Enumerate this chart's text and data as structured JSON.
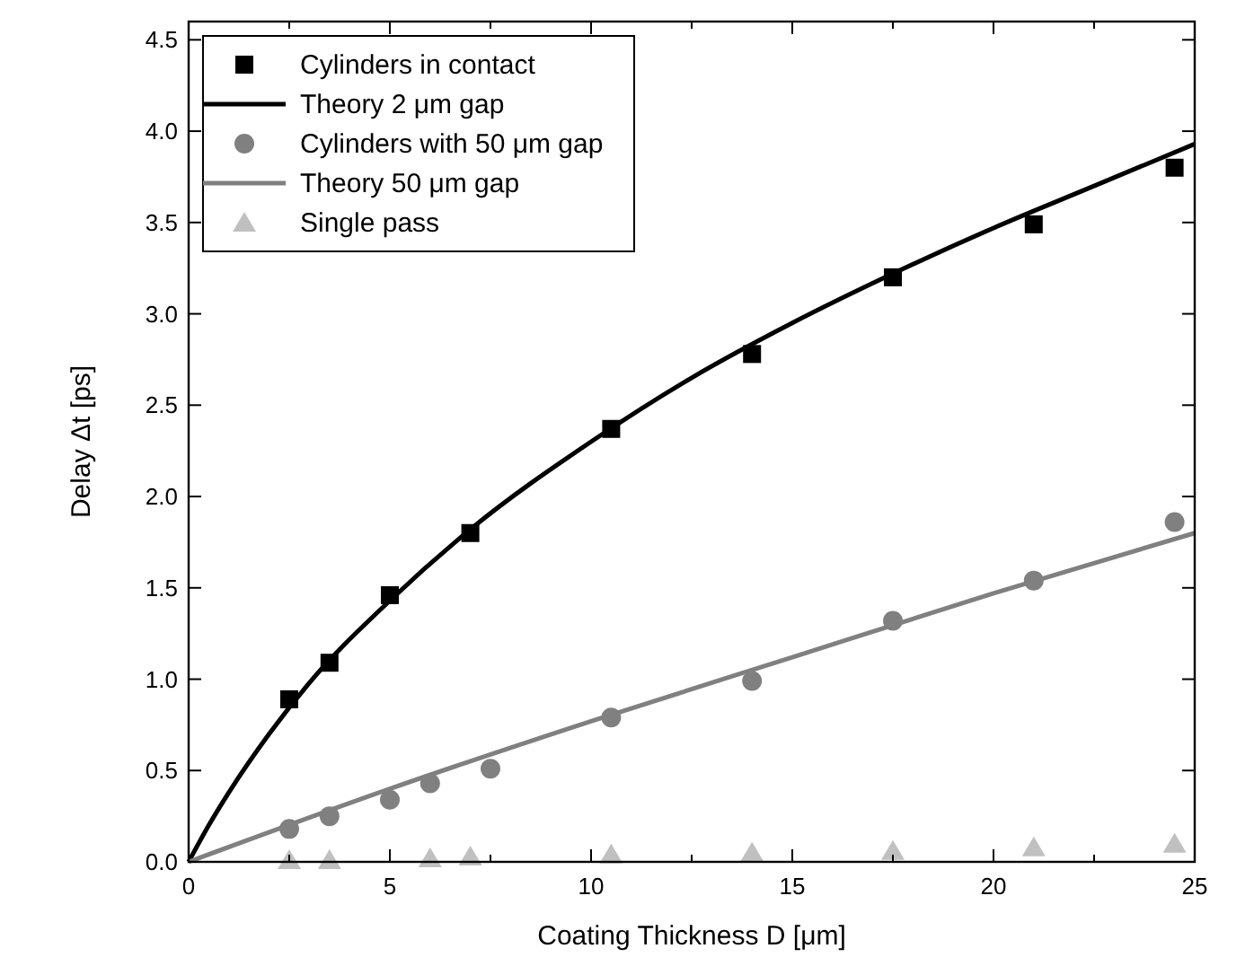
{
  "chart_data": {
    "type": "scatter",
    "xlabel": "Coating Thickness D [μm]",
    "ylabel": "Delay Δt [ps]",
    "xlim": [
      0,
      25
    ],
    "ylim": [
      0,
      4.6
    ],
    "xticks": [
      0,
      {
        "value": 2.5,
        "label": null
      },
      5,
      {
        "value": 7.5,
        "label": null
      },
      10,
      {
        "value": 12.5,
        "label": null
      },
      15,
      {
        "value": 17.5,
        "label": null
      },
      20,
      {
        "value": 22.5,
        "label": null
      },
      25
    ],
    "yticks": [
      {
        "value": 0,
        "label": "0.0"
      },
      {
        "value": 0.5,
        "label": "0.5"
      },
      {
        "value": 1,
        "label": "1.0"
      },
      {
        "value": 1.5,
        "label": "1.5"
      },
      {
        "value": 2,
        "label": "2.0"
      },
      {
        "value": 2.5,
        "label": "2.5"
      },
      {
        "value": 3,
        "label": "3.0"
      },
      {
        "value": 3.5,
        "label": "3.5"
      },
      {
        "value": 4,
        "label": "4.0"
      },
      {
        "value": 4.5,
        "label": "4.5"
      }
    ],
    "grid": false,
    "legend": "top left",
    "series": [
      {
        "name": "Cylinders in contact",
        "marker": "square",
        "color": "#000000",
        "x": [
          2.5,
          3.5,
          5,
          7,
          10.5,
          14,
          17.5,
          21,
          24.5
        ],
        "values": [
          0.89,
          1.09,
          1.46,
          1.8,
          2.37,
          2.78,
          3.2,
          3.49,
          3.8
        ]
      },
      {
        "name": "Theory 2 μm gap",
        "type": "line",
        "color": "#000000",
        "x": [
          0,
          0.5,
          1,
          2,
          3,
          5,
          7,
          10,
          12.5,
          15,
          17.5,
          20,
          22.5,
          25
        ],
        "values": [
          0,
          0.2,
          0.38,
          0.7,
          0.98,
          1.43,
          1.82,
          2.3,
          2.65,
          2.95,
          3.22,
          3.47,
          3.7,
          3.93
        ]
      },
      {
        "name": "Cylinders with 50 μm gap",
        "marker": "circle",
        "color": "#808080",
        "x": [
          2.5,
          3.5,
          5,
          6,
          7.5,
          10.5,
          14,
          17.5,
          21,
          24.5
        ],
        "values": [
          0.18,
          0.25,
          0.34,
          0.43,
          0.51,
          0.79,
          0.99,
          1.32,
          1.54,
          1.86
        ]
      },
      {
        "name": "Theory 50 μm gap",
        "type": "line",
        "color": "#808080",
        "x": [
          0,
          5,
          10,
          15,
          20,
          25
        ],
        "values": [
          0,
          0.4,
          0.77,
          1.12,
          1.47,
          1.8
        ]
      },
      {
        "name": "Single pass",
        "marker": "triangle",
        "color": "#c0c0c0",
        "x": [
          2.5,
          3.5,
          6,
          7,
          10.5,
          14,
          17.5,
          21,
          24.5
        ],
        "values": [
          0.01,
          0.01,
          0.02,
          0.03,
          0.04,
          0.05,
          0.06,
          0.08,
          0.1
        ]
      }
    ]
  }
}
